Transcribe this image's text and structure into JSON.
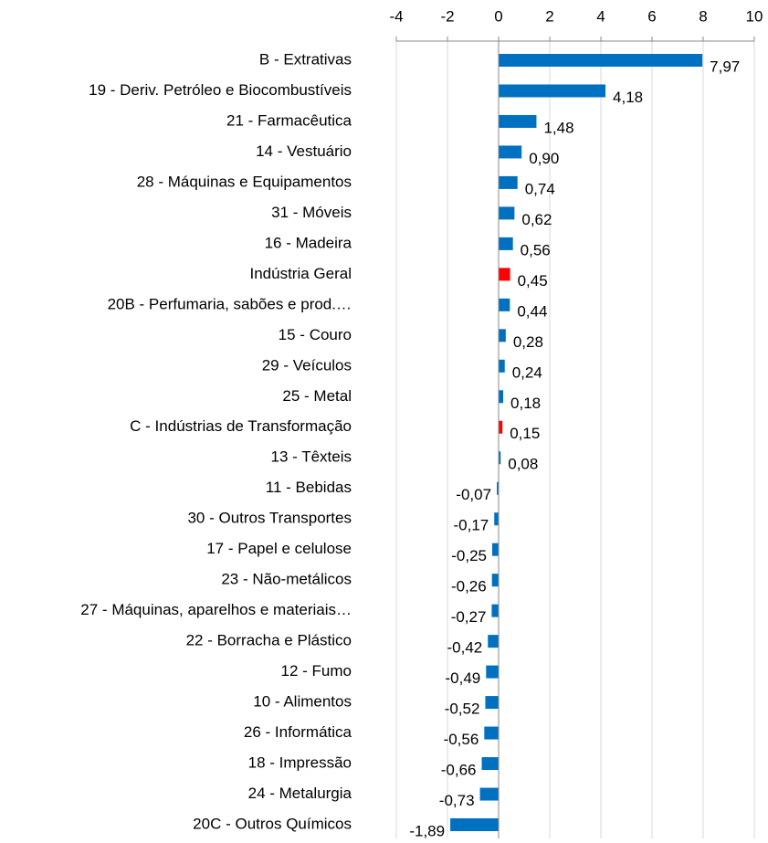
{
  "chart_data": {
    "type": "bar",
    "orientation": "horizontal",
    "categories": [
      "B - Extrativas",
      "19 - Deriv. Petróleo e Biocombustíveis",
      "21 - Farmacêutica",
      "14 - Vestuário",
      "28 - Máquinas e Equipamentos",
      "31 - Móveis",
      "16 - Madeira",
      "Indústria Geral",
      "20B - Perfumaria, sabões e prod.…",
      "15 - Couro",
      "29 - Veículos",
      "25 - Metal",
      "C - Indústrias de Transformação",
      "13 - Têxteis",
      "11 - Bebidas",
      "30 - Outros Transportes",
      "17 - Papel e celulose",
      "23 - Não-metálicos",
      "27 - Máquinas, aparelhos e materiais…",
      "22 - Borracha e Plástico",
      "12 - Fumo",
      "10 - Alimentos",
      "26 - Informática",
      "18 - Impressão",
      "24 - Metalurgia",
      "20C - Outros Químicos"
    ],
    "values": [
      7.97,
      4.18,
      1.48,
      0.9,
      0.74,
      0.62,
      0.56,
      0.45,
      0.44,
      0.28,
      0.24,
      0.18,
      0.15,
      0.08,
      -0.07,
      -0.17,
      -0.25,
      -0.26,
      -0.27,
      -0.42,
      -0.49,
      -0.52,
      -0.56,
      -0.66,
      -0.73,
      -1.89
    ],
    "value_labels": [
      "7,97",
      "4,18",
      "1,48",
      "0,90",
      "0,74",
      "0,62",
      "0,56",
      "0,45",
      "0,44",
      "0,28",
      "0,24",
      "0,18",
      "0,15",
      "0,08",
      "-0,07",
      "-0,17",
      "-0,25",
      "-0,26",
      "-0,27",
      "-0,42",
      "-0,49",
      "-0,52",
      "-0,56",
      "-0,66",
      "-0,73",
      "-1,89"
    ],
    "colors": [
      "#0070c0",
      "#0070c0",
      "#0070c0",
      "#0070c0",
      "#0070c0",
      "#0070c0",
      "#0070c0",
      "#ff0000",
      "#0070c0",
      "#0070c0",
      "#0070c0",
      "#0070c0",
      "#ff0000",
      "#0070c0",
      "#0070c0",
      "#0070c0",
      "#0070c0",
      "#0070c0",
      "#0070c0",
      "#0070c0",
      "#0070c0",
      "#0070c0",
      "#0070c0",
      "#0070c0",
      "#0070c0",
      "#0070c0"
    ],
    "xlim": [
      -4,
      10
    ],
    "xticks": [
      -4,
      -2,
      0,
      2,
      4,
      6,
      8,
      10
    ],
    "grid": true
  }
}
